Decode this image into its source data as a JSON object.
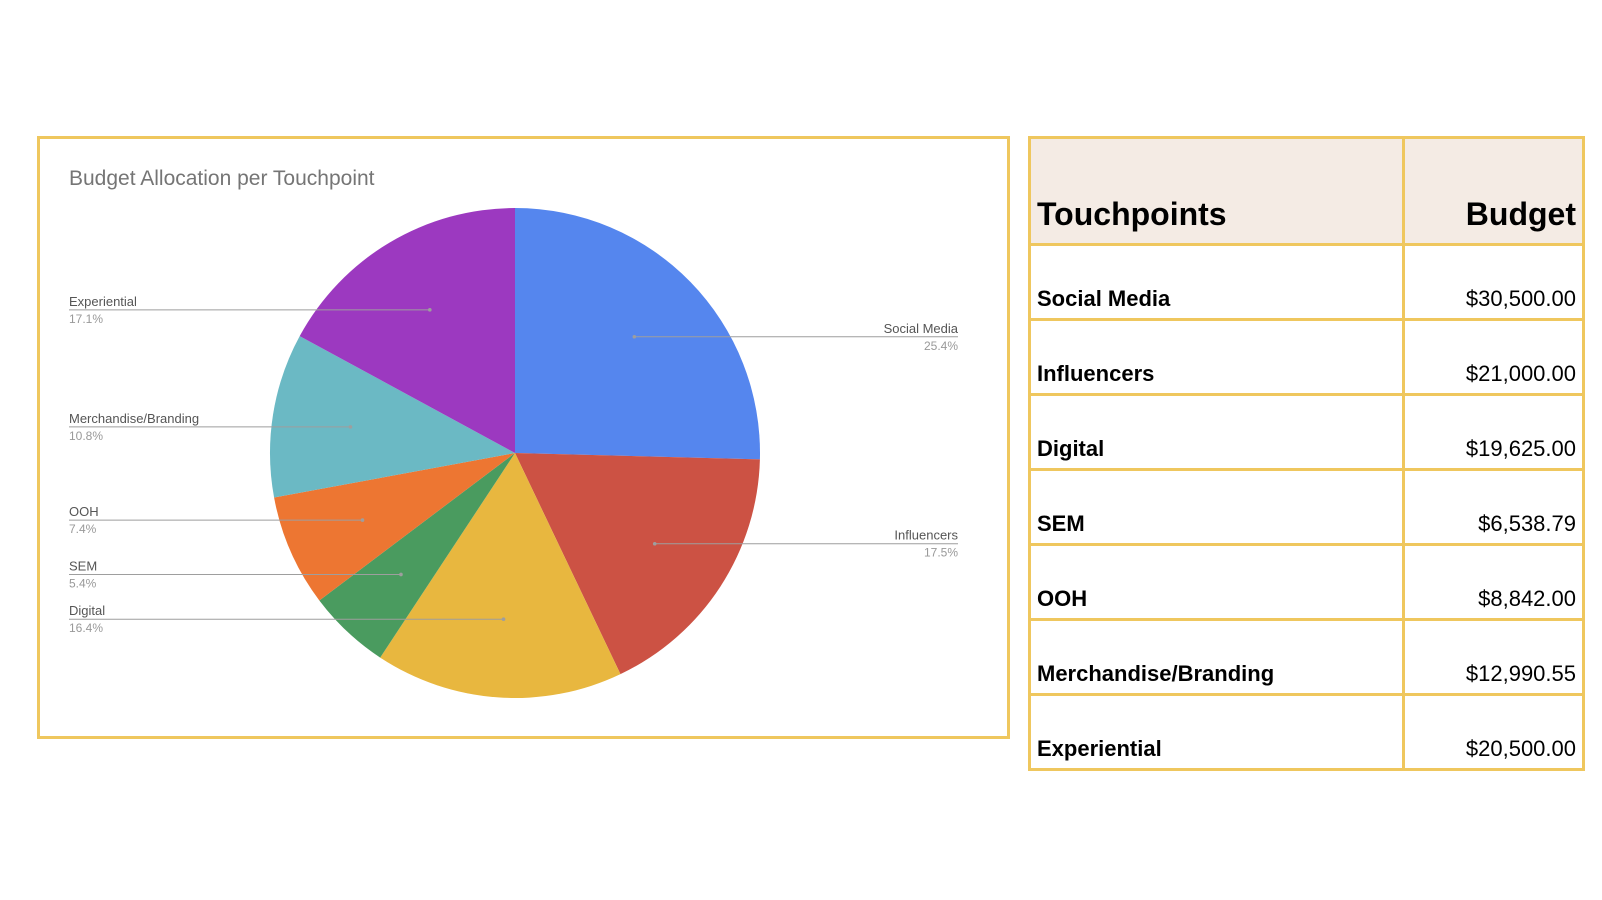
{
  "chart_data": {
    "type": "pie",
    "title": "Budget Allocation per Touchpoint",
    "start_angle_deg": 0,
    "direction": "clockwise",
    "slices": [
      {
        "label": "Social Media",
        "percent": "25.4%",
        "value": 30500.0,
        "color": "#5586ee"
      },
      {
        "label": "Influencers",
        "percent": "17.5%",
        "value": 21000.0,
        "color": "#cc5244"
      },
      {
        "label": "Digital",
        "percent": "16.4%",
        "value": 19625.0,
        "color": "#e8b73f"
      },
      {
        "label": "SEM",
        "percent": "5.4%",
        "value": 6538.79,
        "color": "#4a9b5f"
      },
      {
        "label": "OOH",
        "percent": "7.4%",
        "value": 8842.0,
        "color": "#ed7632"
      },
      {
        "label": "Merchandise/Branding",
        "percent": "10.8%",
        "value": 12990.55,
        "color": "#6bb9c4"
      },
      {
        "label": "Experiential",
        "percent": "17.1%",
        "value": 20500.0,
        "color": "#9c39c0"
      }
    ]
  },
  "table": {
    "headers": [
      "Touchpoints",
      "Budget"
    ],
    "rows": [
      {
        "label": "Social Media",
        "value": "$30,500.00"
      },
      {
        "label": "Influencers",
        "value": "$21,000.00"
      },
      {
        "label": "Digital",
        "value": "$19,625.00"
      },
      {
        "label": "SEM",
        "value": "$6,538.79"
      },
      {
        "label": "OOH",
        "value": "$8,842.00"
      },
      {
        "label": "Merchandise/Branding",
        "value": "$12,990.55"
      },
      {
        "label": "Experiential",
        "value": "$20,500.00"
      }
    ]
  },
  "colors": {
    "border": "#efc75e",
    "header_bg": "#f4ebe4",
    "title_text": "#757575",
    "label_text": "#555555",
    "percent_text": "#999999",
    "leader_line": "#9e9e9e"
  }
}
